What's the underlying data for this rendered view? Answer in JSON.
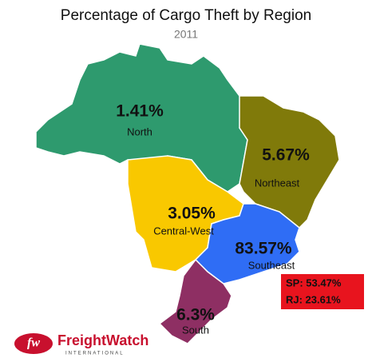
{
  "header": {
    "title": "Percentage of Cargo Theft by Region",
    "subtitle": "2011"
  },
  "regions": [
    {
      "name": "North",
      "value": "1.41%"
    },
    {
      "name": "Northeast",
      "value": "5.67%"
    },
    {
      "name": "Central-West",
      "value": "3.05%"
    },
    {
      "name": "Southeast",
      "value": "83.57%"
    },
    {
      "name": "South",
      "value": "6.3%"
    }
  ],
  "callout": {
    "lines": [
      "SP: 53.47%",
      "RJ: 23.61%"
    ]
  },
  "logo": {
    "mark": "fw",
    "name": "FreightWatch",
    "tagline": "INTERNATIONAL"
  }
}
